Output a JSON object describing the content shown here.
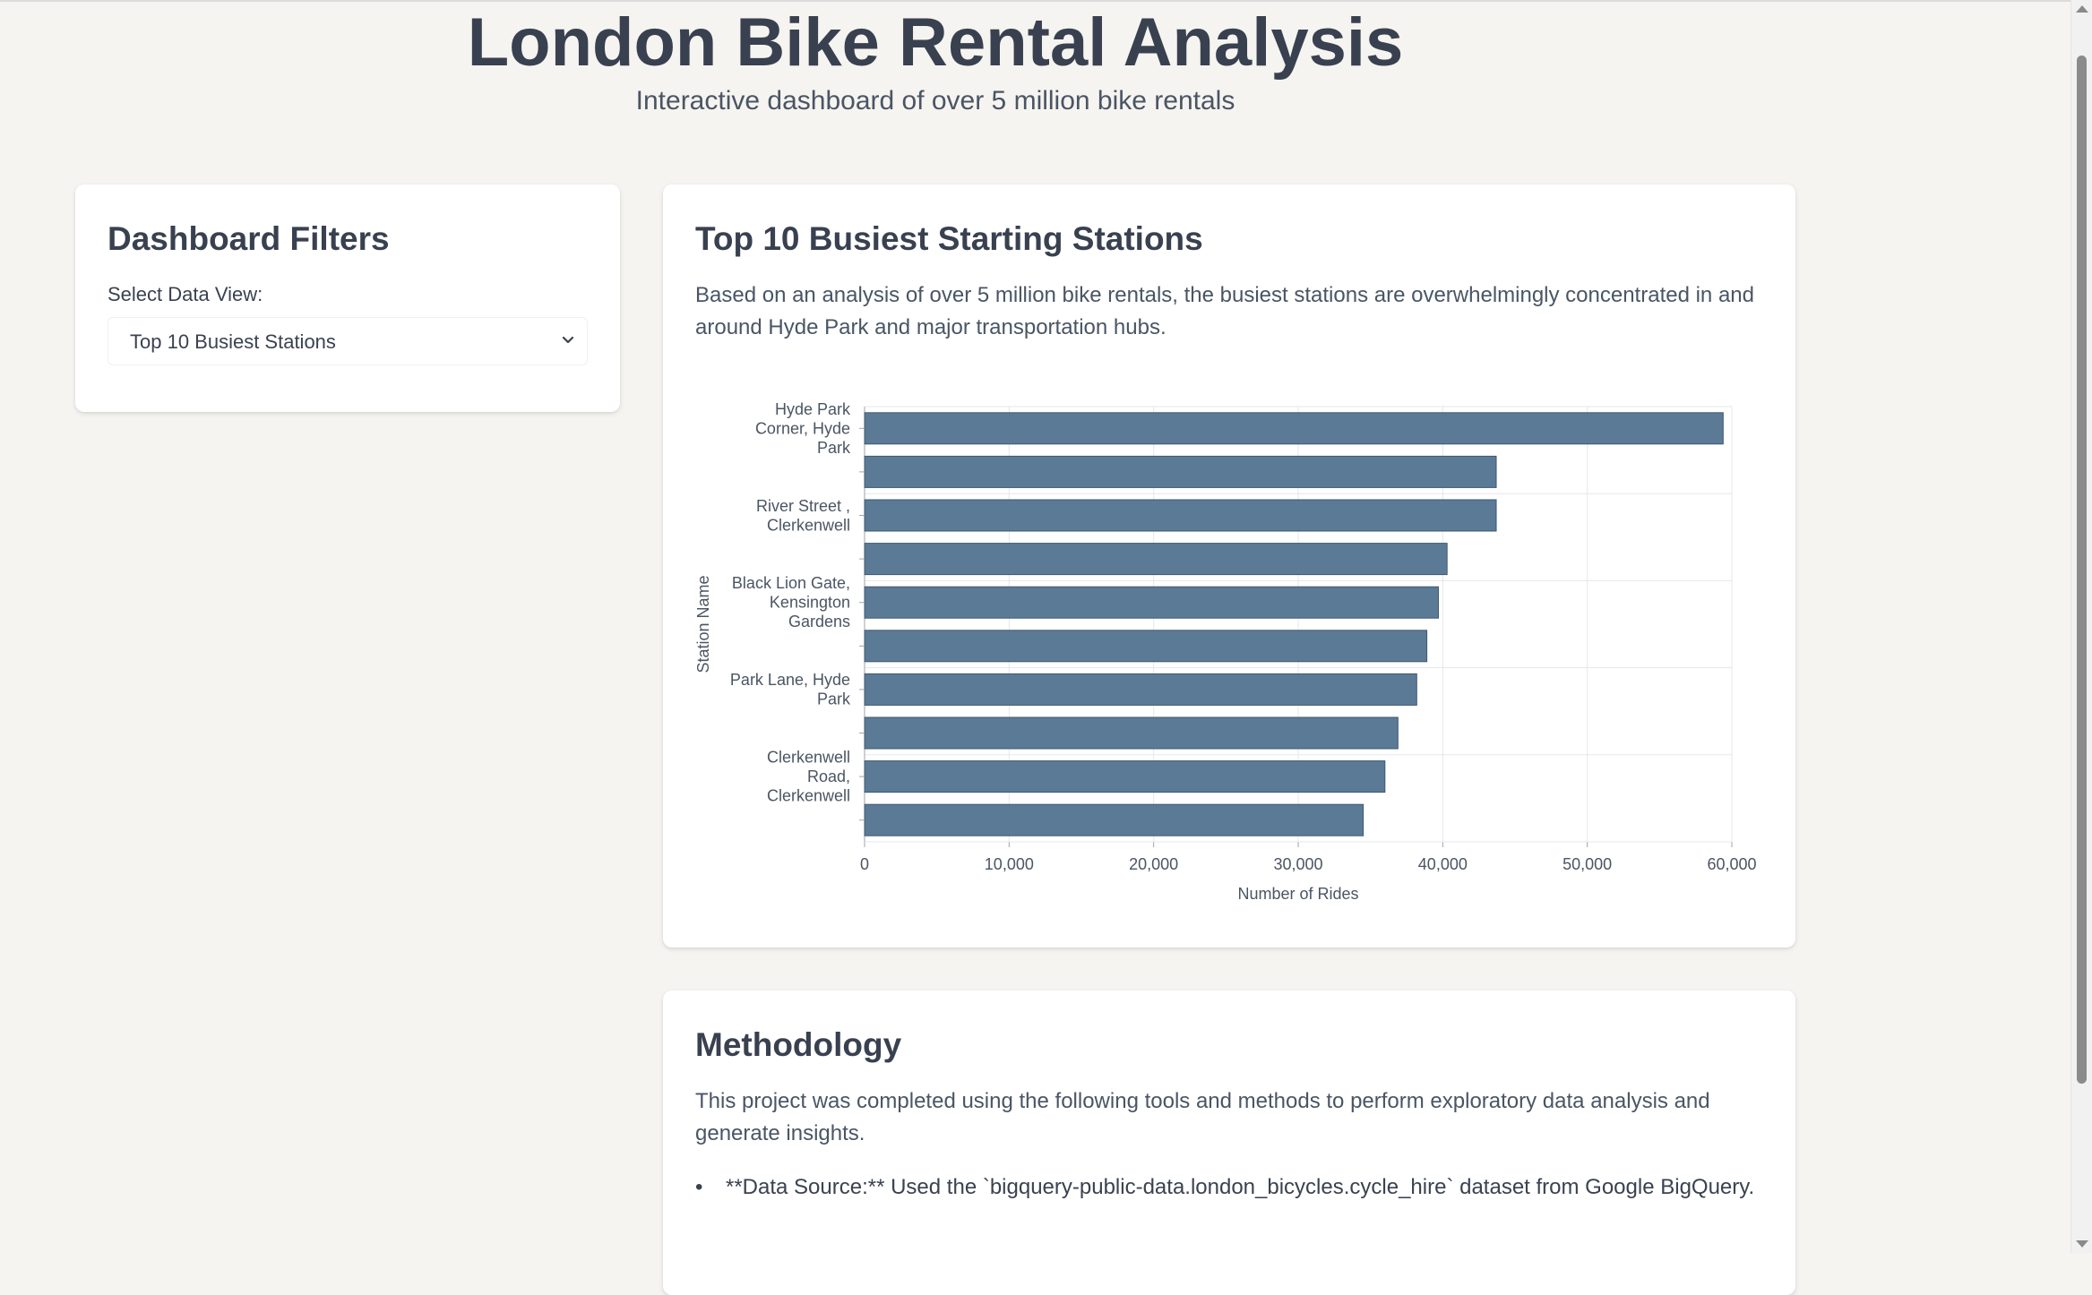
{
  "header": {
    "title": "London Bike Rental Analysis",
    "subtitle": "Interactive dashboard of over 5 million bike rentals"
  },
  "filters": {
    "title": "Dashboard Filters",
    "select_label": "Select Data View:",
    "selected_view": "Top 10 Busiest Stations",
    "chevron_icon": "chevron-down-icon"
  },
  "chart_section": {
    "title": "Top 10 Busiest Starting Stations",
    "description": "Based on an analysis of over 5 million bike rentals, the busiest stations are overwhelmingly concentrated in and around Hyde Park and major transportation hubs."
  },
  "chart_data": {
    "type": "bar",
    "orientation": "horizontal",
    "xlabel": "Number of Rides",
    "ylabel": "Station Name",
    "xlim": [
      0,
      60000
    ],
    "xticks": [
      "0",
      "10,000",
      "20,000",
      "30,000",
      "40,000",
      "50,000",
      "60,000"
    ],
    "grid": true,
    "bar_color": "#5b7a96",
    "categories": [
      "Hyde Park Corner, Hyde Park",
      "",
      "River Street , Clerkenwell",
      "",
      "Black Lion Gate, Kensington Gardens",
      "",
      "Park Lane, Hyde Park",
      "",
      "Clerkenwell Road, Clerkenwell",
      ""
    ],
    "category_label_lines": [
      [
        "Hyde Park",
        "Corner, Hyde",
        "Park"
      ],
      [],
      [
        "River Street ,",
        "Clerkenwell"
      ],
      [],
      [
        "Black Lion Gate,",
        "Kensington",
        "Gardens"
      ],
      [],
      [
        "Park Lane, Hyde",
        "Park"
      ],
      [],
      [
        "Clerkenwell",
        "Road,",
        "Clerkenwell"
      ],
      []
    ],
    "values": [
      59400,
      43700,
      43700,
      40300,
      39700,
      38900,
      38200,
      36900,
      36000,
      34500
    ]
  },
  "methodology": {
    "title": "Methodology",
    "description": "This project was completed using the following tools and methods to perform exploratory data analysis and generate insights.",
    "items": [
      "**Data Source:** Used the `bigquery-public-data.london_bicycles.cycle_hire` dataset from Google BigQuery."
    ]
  }
}
